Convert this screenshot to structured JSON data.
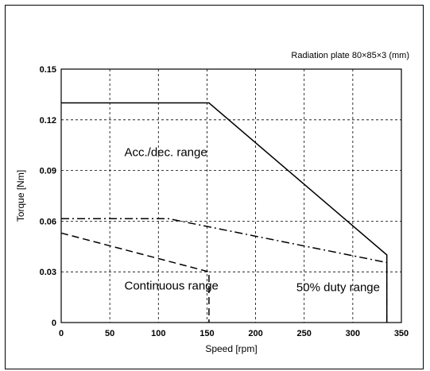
{
  "chart_data": {
    "type": "line",
    "note": "Radiation plate    80×85×3 (mm)",
    "xlabel": "Speed [rpm]",
    "ylabel": "Torque [Nm]",
    "xlim": [
      0,
      350
    ],
    "ylim": [
      0,
      0.15
    ],
    "xticks": [
      0,
      50,
      100,
      150,
      200,
      250,
      300,
      350
    ],
    "xtick_labels": [
      "0",
      "50",
      "100",
      "150",
      "200",
      "250",
      "300",
      "350"
    ],
    "yticks": [
      0,
      0.03,
      0.06,
      0.09,
      0.12,
      0.15
    ],
    "ytick_labels": [
      "0",
      "0.03",
      "0.06",
      "0.09",
      "0.12",
      "0.15"
    ],
    "grid": true,
    "series": [
      {
        "style": "solid",
        "x": [
          0,
          152,
          335,
          335
        ],
        "y": [
          0.13,
          0.13,
          0.04,
          0
        ]
      },
      {
        "style": "dashdot",
        "x": [
          0,
          110,
          335,
          335
        ],
        "y": [
          0.0615,
          0.0615,
          0.0355,
          0
        ]
      },
      {
        "style": "dashed",
        "x": [
          0,
          152,
          152
        ],
        "y": [
          0.053,
          0.03,
          0
        ]
      }
    ],
    "annotations": [
      {
        "text": "Acc./dec. range",
        "x": 65,
        "y": 0.0985
      },
      {
        "text": "Continuous range",
        "x": 65,
        "y": 0.0195
      },
      {
        "text": "50% duty range",
        "x": 242,
        "y": 0.0185
      }
    ]
  }
}
